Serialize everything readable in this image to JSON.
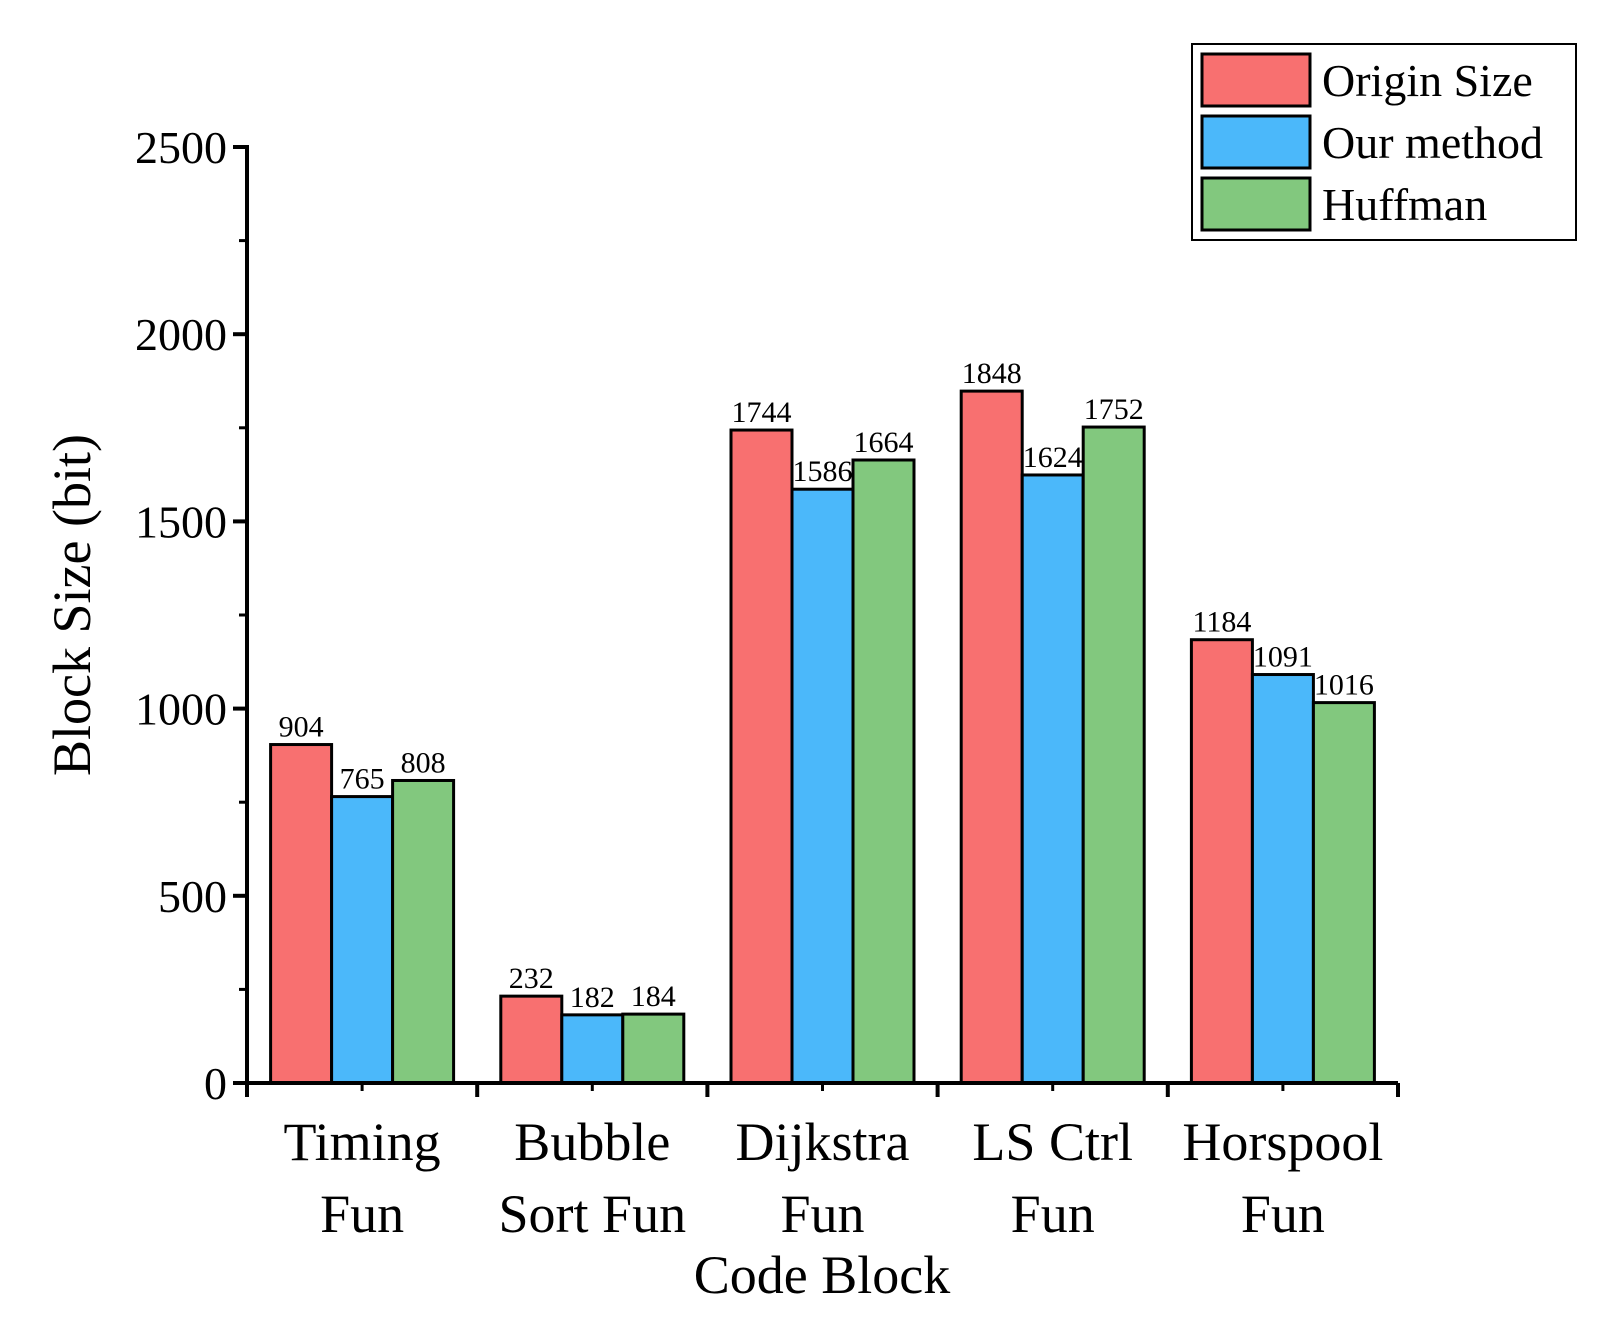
{
  "chart_data": {
    "type": "bar",
    "title": "",
    "xlabel": "Code Block",
    "ylabel": "Block Size (bit)",
    "ylim": [
      0,
      2500
    ],
    "yticks": [
      0,
      500,
      1000,
      1500,
      2000,
      2500
    ],
    "grid": false,
    "legend_position": "top-right",
    "categories": [
      [
        "Timing",
        "Fun"
      ],
      [
        "Bubble",
        "Sort Fun"
      ],
      [
        "Dijkstra",
        "Fun"
      ],
      [
        "LS Ctrl",
        "Fun"
      ],
      [
        "Horspool",
        "Fun"
      ]
    ],
    "series": [
      {
        "name": "Origin Size",
        "color": "#F87070",
        "values": [
          904,
          232,
          1744,
          1848,
          1184
        ]
      },
      {
        "name": "Our method",
        "color": "#4BB8FA",
        "values": [
          765,
          182,
          1586,
          1624,
          1091
        ]
      },
      {
        "name": "Huffman",
        "color": "#82C87E",
        "values": [
          808,
          184,
          1664,
          1752,
          1016
        ]
      }
    ]
  }
}
